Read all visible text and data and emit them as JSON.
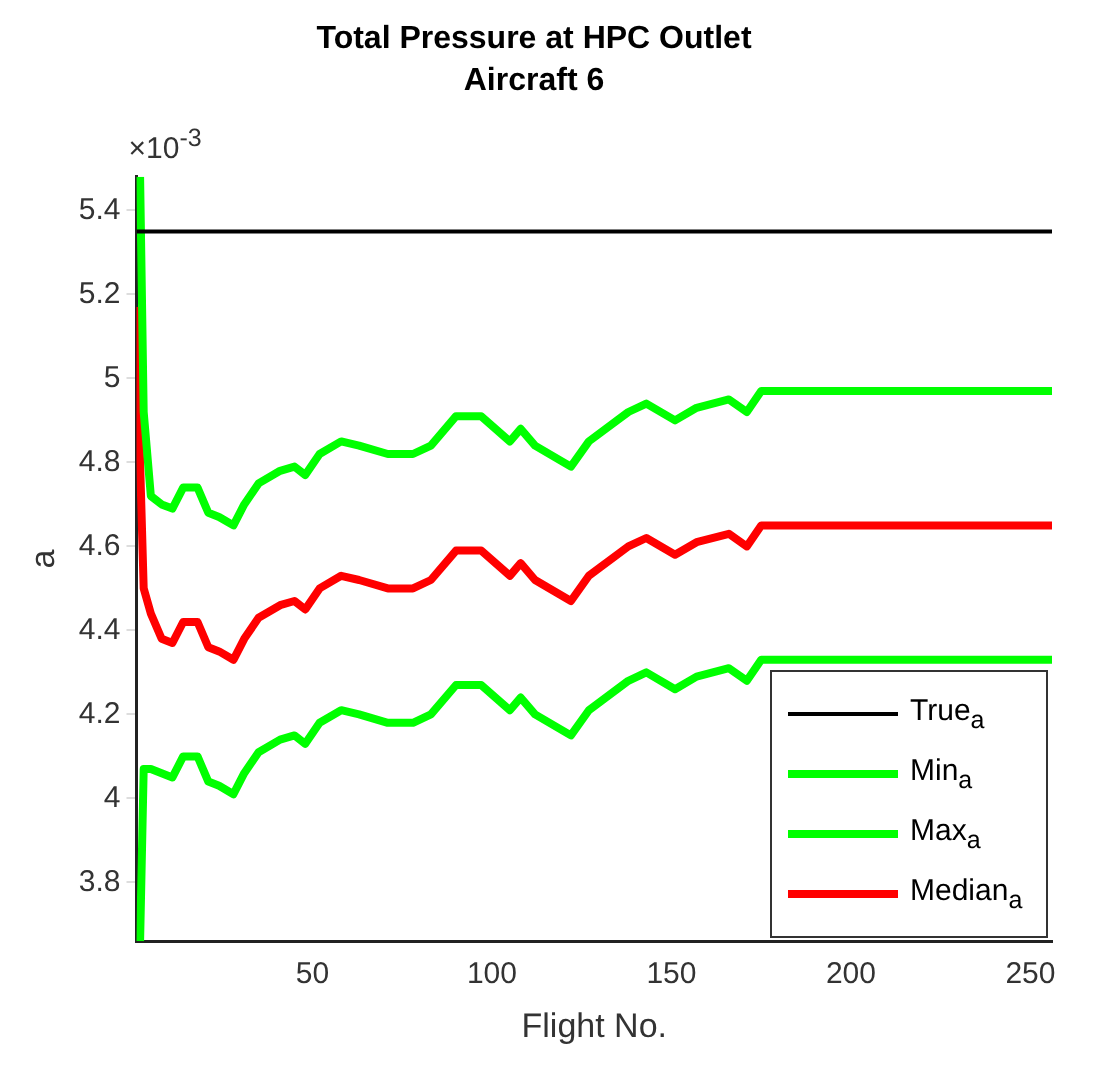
{
  "chart_data": {
    "type": "line",
    "title": "Total Pressure at HPC Outlet",
    "subtitle": "Aircraft 6",
    "xlabel": "Flight No.",
    "ylabel": "a",
    "annotations": [
      "×10$^{-3}$"
    ],
    "x": [
      2,
      3,
      5,
      8,
      11,
      14,
      18,
      21,
      24,
      28,
      31,
      35,
      41,
      45,
      48,
      52,
      58,
      63,
      71,
      78,
      83,
      90,
      97,
      105,
      108,
      112,
      122,
      127,
      138,
      143,
      151,
      157,
      166,
      171,
      175,
      181,
      256
    ],
    "series": [
      {
        "name": "True$_{a}$",
        "color": "#000000",
        "x": [
          1,
          256
        ],
        "values": [
          5.35,
          5.35
        ]
      },
      {
        "name": "Min$_{a}$",
        "color": "#00ff00",
        "values": [
          3.66,
          4.07,
          4.07,
          4.06,
          4.05,
          4.1,
          4.1,
          4.04,
          4.03,
          4.01,
          4.06,
          4.11,
          4.14,
          4.15,
          4.13,
          4.18,
          4.21,
          4.2,
          4.18,
          4.18,
          4.2,
          4.27,
          4.27,
          4.21,
          4.24,
          4.2,
          4.15,
          4.21,
          4.28,
          4.3,
          4.26,
          4.29,
          4.31,
          4.28,
          4.33,
          4.33,
          4.33
        ]
      },
      {
        "name": "Max$_{a}$",
        "color": "#00ff00",
        "values": [
          5.48,
          4.92,
          4.72,
          4.7,
          4.69,
          4.74,
          4.74,
          4.68,
          4.67,
          4.65,
          4.7,
          4.75,
          4.78,
          4.79,
          4.77,
          4.82,
          4.85,
          4.84,
          4.82,
          4.82,
          4.84,
          4.91,
          4.91,
          4.85,
          4.88,
          4.84,
          4.79,
          4.85,
          4.92,
          4.94,
          4.9,
          4.93,
          4.95,
          4.92,
          4.97,
          4.97,
          4.97
        ]
      },
      {
        "name": "Median$_{a}$",
        "color": "#ff0000",
        "x": [
          1,
          2,
          3,
          5,
          8,
          11,
          14,
          18,
          21,
          24,
          28,
          31,
          35,
          41,
          45,
          48,
          52,
          58,
          63,
          71,
          78,
          83,
          90,
          97,
          105,
          108,
          112,
          122,
          127,
          138,
          143,
          151,
          157,
          166,
          171,
          175,
          181,
          256
        ],
        "values": [
          5.17,
          4.8,
          4.5,
          4.44,
          4.38,
          4.37,
          4.42,
          4.42,
          4.36,
          4.35,
          4.33,
          4.38,
          4.43,
          4.46,
          4.47,
          4.45,
          4.5,
          4.53,
          4.52,
          4.5,
          4.5,
          4.52,
          4.59,
          4.59,
          4.53,
          4.56,
          4.52,
          4.47,
          4.53,
          4.6,
          4.62,
          4.58,
          4.61,
          4.63,
          4.6,
          4.65,
          4.65,
          4.65
        ]
      }
    ],
    "xlim": [
      1,
      256
    ],
    "xticks": [
      50,
      100,
      150,
      200,
      250
    ],
    "ylim": [
      3.66,
      5.48
    ],
    "yticks": [
      3.8,
      4,
      4.2,
      4.4,
      4.6,
      4.8,
      5,
      5.2,
      5.4
    ],
    "grid": false,
    "legend": "bottom right",
    "marker": "none",
    "line_style": "solid"
  }
}
